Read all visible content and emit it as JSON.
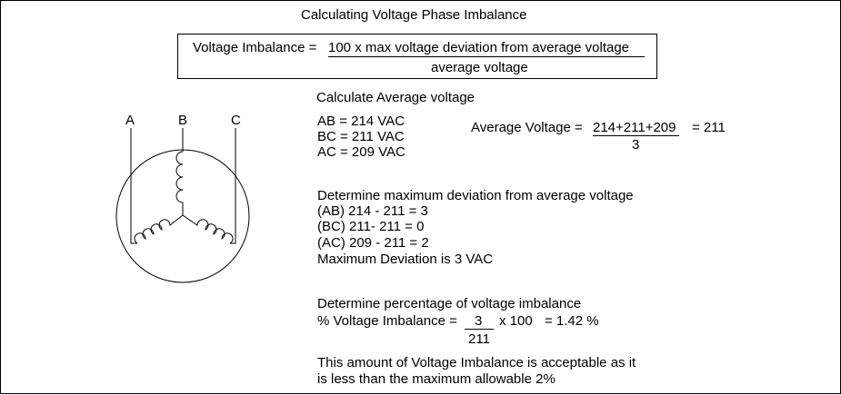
{
  "title": "Calculating Voltage Phase Imbalance",
  "formula": {
    "lhs": "Voltage Imbalance =",
    "numerator": "100 x max voltage deviation from average voltage",
    "denominator": "average voltage"
  },
  "motor": {
    "labels": [
      "A",
      "B",
      "C"
    ]
  },
  "average": {
    "heading": "Calculate Average voltage",
    "readings": [
      "AB = 214 VAC",
      "BC = 211 VAC",
      "AC = 209 VAC"
    ],
    "lhs": "Average Voltage =",
    "numerator": "214+211+209",
    "denominator": "3",
    "result": "= 211"
  },
  "deviation": {
    "heading": "Determine maximum deviation from average voltage",
    "lines": [
      "(AB) 214 - 211 = 3",
      "(BC) 211- 211 = 0",
      "(AC) 209 - 211 = 2"
    ],
    "summary": "Maximum Deviation is 3 VAC"
  },
  "percentage": {
    "heading": "Determine percentage of voltage imbalance",
    "lhs": "% Voltage Imbalance =",
    "numerator": "3",
    "multiplier": "x  100",
    "result": "= 1.42 %",
    "denominator": "211"
  },
  "conclusion": {
    "line1": "This amount of Voltage Imbalance is acceptable as it",
    "line2": "is less than the maximum allowable 2%"
  }
}
